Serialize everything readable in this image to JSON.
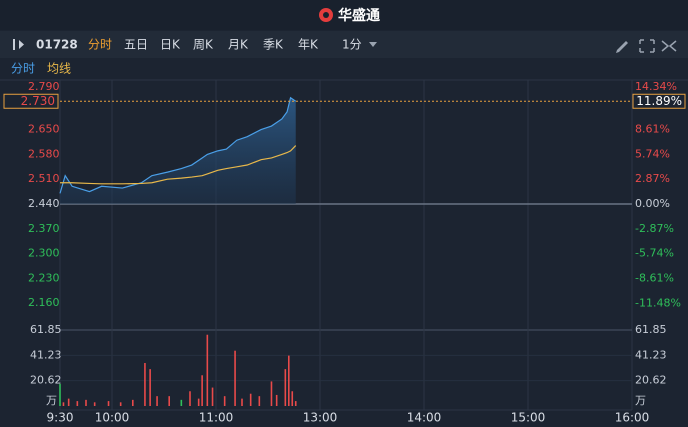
{
  "header": {
    "title": "华盛通"
  },
  "toolbar": {
    "code": "01728",
    "tabs": [
      "分时",
      "五日",
      "日K",
      "周K",
      "月K",
      "季K",
      "年K"
    ],
    "interval": "1分"
  },
  "chart_data": [
    {
      "type": "line",
      "x": [
        0,
        3,
        7,
        17,
        24,
        36,
        47,
        53,
        62,
        70,
        76,
        82,
        85,
        91,
        96,
        102,
        108,
        116,
        122,
        128,
        131,
        133,
        136
      ],
      "series": [
        {
          "name": "分时",
          "color": "#4a9fe8",
          "values": [
            2.47,
            2.52,
            2.49,
            2.475,
            2.49,
            2.485,
            2.5,
            2.52,
            2.53,
            2.54,
            2.55,
            2.57,
            2.58,
            2.59,
            2.595,
            2.62,
            2.63,
            2.65,
            2.66,
            2.68,
            2.7,
            2.74,
            2.73
          ]
        },
        {
          "name": "均线",
          "color": "#e8b84a",
          "values": [
            2.5,
            2.5,
            2.5,
            2.498,
            2.497,
            2.497,
            2.498,
            2.5,
            2.51,
            2.513,
            2.516,
            2.52,
            2.525,
            2.535,
            2.54,
            2.545,
            2.55,
            2.565,
            2.57,
            2.58,
            2.585,
            2.59,
            2.605
          ]
        }
      ],
      "xlim": [
        0,
        330
      ],
      "xticks": [
        {
          "value": 0,
          "label": "9:30"
        },
        {
          "value": 30,
          "label": "10:00"
        },
        {
          "value": 90,
          "label": "11:00"
        },
        {
          "value": 150,
          "label": "13:00"
        },
        {
          "value": 210,
          "label": "14:00"
        },
        {
          "value": 270,
          "label": "15:00"
        },
        {
          "value": 330,
          "label": "16:00"
        }
      ],
      "ylim": [
        2.09,
        2.79
      ],
      "yticks": [
        {
          "value": 2.79,
          "label": "2.790"
        },
        {
          "value": 2.65,
          "label": "2.650"
        },
        {
          "value": 2.58,
          "label": "2.580"
        },
        {
          "value": 2.51,
          "label": "2.510"
        },
        {
          "value": 2.44,
          "label": "2.440"
        },
        {
          "value": 2.37,
          "label": "2.370"
        },
        {
          "value": 2.3,
          "label": "2.300"
        },
        {
          "value": 2.23,
          "label": "2.230"
        },
        {
          "value": 2.16,
          "label": "2.160"
        }
      ],
      "y2lim": [
        -14.34,
        14.34
      ],
      "y2ticks": [
        {
          "value": 14.34,
          "label": "14.34%"
        },
        {
          "value": 8.61,
          "label": "8.61%"
        },
        {
          "value": 5.74,
          "label": "5.74%"
        },
        {
          "value": 2.87,
          "label": "2.87%"
        },
        {
          "value": 0,
          "label": "0.00%"
        },
        {
          "value": -2.87,
          "label": "-2.87%"
        },
        {
          "value": -5.74,
          "label": "-5.74%"
        },
        {
          "value": -8.61,
          "label": "-8.61%"
        },
        {
          "value": -11.48,
          "label": "-11.48%"
        }
      ],
      "baseline": 2.44,
      "last_price": {
        "value": 2.73,
        "label": "2.730"
      },
      "last_change": {
        "value": 11.89,
        "label": "11.89%"
      },
      "up_color": "#e84a4a",
      "down_color": "#2fbf5a"
    },
    {
      "type": "bar",
      "unit": "万",
      "x": [
        0,
        2,
        5,
        10,
        15,
        20,
        28,
        35,
        42,
        49,
        52,
        56,
        63,
        70,
        75,
        80,
        82,
        85,
        88,
        95,
        101,
        105,
        110,
        115,
        122,
        125,
        130,
        132,
        134,
        136
      ],
      "values": [
        18,
        3,
        6,
        4,
        5,
        3,
        4,
        3,
        5,
        35,
        30,
        8,
        8,
        5,
        12,
        6,
        25,
        58,
        15,
        8,
        45,
        6,
        10,
        8,
        20,
        9,
        30,
        41,
        12,
        4
      ],
      "colors": [
        "#2fbf5a",
        "#e84a4a",
        "#e84a4a",
        "#e84a4a",
        "#e84a4a",
        "#e84a4a",
        "#e84a4a",
        "#e84a4a",
        "#e84a4a",
        "#e84a4a",
        "#e84a4a",
        "#e84a4a",
        "#e84a4a",
        "#2fbf5a",
        "#e84a4a",
        "#e84a4a",
        "#e84a4a",
        "#e84a4a",
        "#e84a4a",
        "#e84a4a",
        "#e84a4a",
        "#e84a4a",
        "#e84a4a",
        "#e84a4a",
        "#e84a4a",
        "#e84a4a",
        "#e84a4a",
        "#e84a4a",
        "#e84a4a",
        "#e84a4a"
      ],
      "xlim": [
        0,
        330
      ],
      "ylim": [
        0,
        61.85
      ],
      "yticks": [
        61.85,
        41.23,
        20.62
      ]
    }
  ]
}
